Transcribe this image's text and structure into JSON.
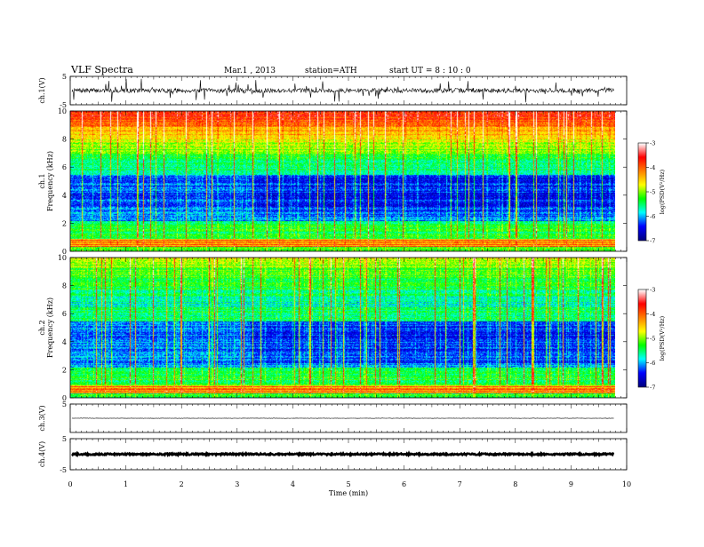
{
  "header": {
    "title": "VLF  Spectra",
    "date": "Mar.1  , 2013",
    "station": "station=ATH",
    "start": "start  UT =   8 : 10 : 0"
  },
  "chart_data": {
    "type": "heatmap",
    "xlabel": "Time  (min)",
    "xlim": [
      0,
      10
    ],
    "x_ticks": [
      0,
      1,
      2,
      3,
      4,
      5,
      6,
      7,
      8,
      9,
      10
    ],
    "data_end_min": 9.8,
    "panels": [
      {
        "id": "ch1-wave",
        "kind": "waveform",
        "ylabel": "ch.1(V)",
        "ylim": [
          -5,
          5
        ],
        "y_ticks": [
          5,
          -5
        ],
        "amplitude": 1.0,
        "noise": "high"
      },
      {
        "id": "ch1-spec",
        "kind": "spectrogram",
        "ylabel": "ch.1",
        "ylabel2": "Frequency  (kHz)",
        "ylim": [
          0,
          10
        ],
        "y_ticks": [
          0,
          2,
          4,
          6,
          8,
          10
        ],
        "variant": 1
      },
      {
        "id": "ch2-spec",
        "kind": "spectrogram",
        "ylabel": "ch.2",
        "ylabel2": "Frequency  (kHz)",
        "ylim": [
          0,
          10
        ],
        "y_ticks": [
          0,
          2,
          4,
          6,
          8,
          10
        ],
        "variant": 2
      },
      {
        "id": "ch3-wave",
        "kind": "waveform",
        "ylabel": "ch.3(V)",
        "ylim": [
          -5,
          5
        ],
        "y_ticks": [
          5
        ],
        "amplitude": 0.15,
        "offset": 0.0,
        "noise": "low"
      },
      {
        "id": "ch4-wave",
        "kind": "waveform",
        "ylabel": "ch.4(V)",
        "ylim": [
          -5,
          5
        ],
        "y_ticks": [
          5,
          -5
        ],
        "amplitude": 0.25,
        "offset": 0.0,
        "noise": "thick"
      }
    ],
    "colorbar": {
      "label": "log(PSD(V²/Hz)",
      "range": [
        -7,
        -3
      ],
      "ticks": [
        -3,
        -4,
        -5,
        -6,
        -7
      ],
      "colors": [
        "#000080",
        "#0000ff",
        "#00ffff",
        "#00ff00",
        "#ffff00",
        "#ff8000",
        "#ff0000",
        "#ffffff"
      ]
    }
  }
}
